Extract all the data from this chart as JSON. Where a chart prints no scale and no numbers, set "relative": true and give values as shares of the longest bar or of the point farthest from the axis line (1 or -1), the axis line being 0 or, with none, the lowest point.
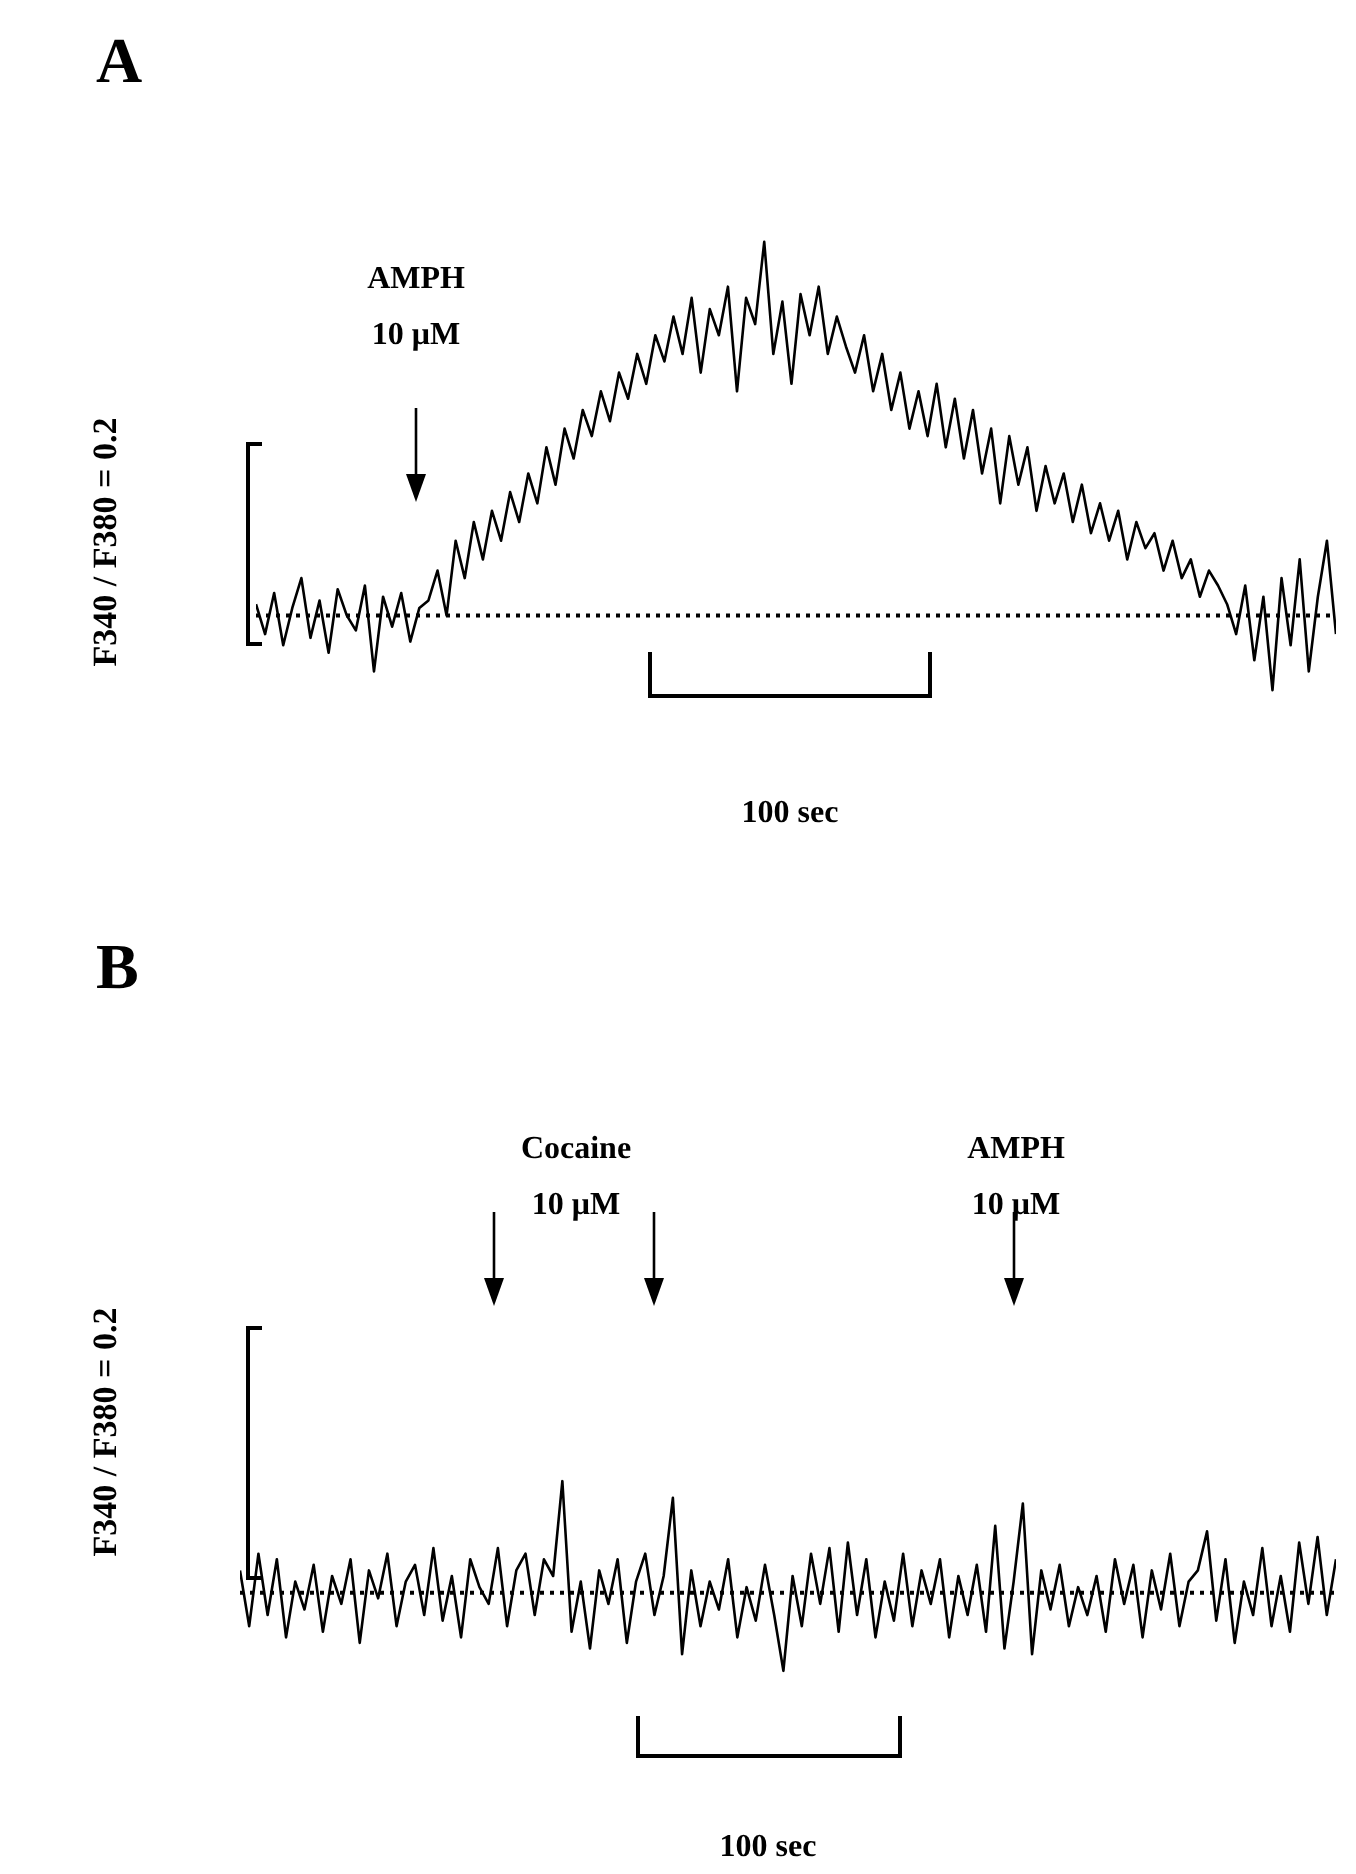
{
  "chart_data": [
    {
      "type": "line",
      "title": "A",
      "ylabel": "F340 / F380 = 0.2",
      "relative": true,
      "categories": [
        null,
        null,
        null,
        null,
        null,
        null,
        null,
        null,
        null,
        null,
        null,
        null,
        null,
        null,
        null,
        null,
        null,
        null,
        null,
        null,
        null,
        null,
        null,
        null,
        null,
        null,
        null,
        null,
        null,
        null,
        null,
        null,
        null,
        null,
        null,
        null,
        null,
        null,
        null,
        null,
        null,
        null,
        null,
        null,
        null,
        null,
        null,
        null,
        null,
        null,
        null,
        null,
        null,
        null,
        null,
        null,
        null,
        null,
        null,
        null,
        null,
        null,
        null,
        null,
        null,
        null,
        null,
        null,
        null,
        null,
        null,
        null,
        null,
        null,
        null,
        null,
        null,
        null,
        null,
        null,
        null,
        null,
        null,
        null,
        null,
        null,
        null,
        null,
        null,
        null,
        null,
        null,
        null,
        null,
        null,
        null,
        null,
        null,
        null,
        null,
        null,
        null,
        null,
        null,
        null,
        null,
        null,
        null,
        null,
        null,
        null,
        null,
        null,
        null,
        null,
        null,
        null,
        null,
        null,
        null
      ],
      "series": [
        {
          "color": "#000000",
          "values": [
            0.03,
            -0.05,
            0.06,
            -0.08,
            0.02,
            0.1,
            -0.06,
            0.04,
            -0.1,
            0.07,
            0.0,
            -0.04,
            0.08,
            -0.15,
            0.05,
            -0.03,
            0.06,
            -0.07,
            0.02,
            0.04,
            0.12,
            0.0,
            0.2,
            0.1,
            0.25,
            0.15,
            0.28,
            0.2,
            0.33,
            0.25,
            0.38,
            0.3,
            0.45,
            0.35,
            0.5,
            0.42,
            0.55,
            0.48,
            0.6,
            0.52,
            0.65,
            0.58,
            0.7,
            0.62,
            0.75,
            0.68,
            0.8,
            0.7,
            0.85,
            0.65,
            0.82,
            0.75,
            0.88,
            0.6,
            0.85,
            0.78,
            1.0,
            0.7,
            0.84,
            0.62,
            0.86,
            0.75,
            0.88,
            0.7,
            0.8,
            0.72,
            0.65,
            0.75,
            0.6,
            0.7,
            0.55,
            0.65,
            0.5,
            0.6,
            0.48,
            0.62,
            0.45,
            0.58,
            0.42,
            0.55,
            0.38,
            0.5,
            0.3,
            0.48,
            0.35,
            0.45,
            0.28,
            0.4,
            0.3,
            0.38,
            0.25,
            0.35,
            0.22,
            0.3,
            0.2,
            0.28,
            0.15,
            0.25,
            0.18,
            0.22,
            0.12,
            0.2,
            0.1,
            0.15,
            0.05,
            0.12,
            0.08,
            0.03,
            -0.05,
            0.08,
            -0.12,
            0.05,
            -0.2,
            0.1,
            -0.08,
            0.15,
            -0.15,
            0.05,
            0.2,
            -0.05
          ]
        }
      ],
      "ref_lines": [
        {
          "axis": "y",
          "value": 0,
          "line_style": "dotted"
        }
      ],
      "annotations": [
        "AMPH 10 μM",
        "100 sec"
      ]
    },
    {
      "type": "line",
      "title": "B",
      "ylabel": "F340 / F380 = 0.2",
      "relative": true,
      "categories": [
        null,
        null,
        null,
        null,
        null,
        null,
        null,
        null,
        null,
        null,
        null,
        null,
        null,
        null,
        null,
        null,
        null,
        null,
        null,
        null,
        null,
        null,
        null,
        null,
        null,
        null,
        null,
        null,
        null,
        null,
        null,
        null,
        null,
        null,
        null,
        null,
        null,
        null,
        null,
        null,
        null,
        null,
        null,
        null,
        null,
        null,
        null,
        null,
        null,
        null,
        null,
        null,
        null,
        null,
        null,
        null,
        null,
        null,
        null,
        null,
        null,
        null,
        null,
        null,
        null,
        null,
        null,
        null,
        null,
        null,
        null,
        null,
        null,
        null,
        null,
        null,
        null,
        null,
        null,
        null,
        null,
        null,
        null,
        null,
        null,
        null,
        null,
        null,
        null,
        null,
        null,
        null,
        null,
        null,
        null,
        null,
        null,
        null,
        null,
        null,
        null,
        null,
        null,
        null,
        null,
        null,
        null,
        null,
        null,
        null,
        null,
        null,
        null,
        null,
        null,
        null,
        null,
        null,
        null,
        null
      ],
      "series": [
        {
          "color": "#000000",
          "values": [
            0.2,
            -0.3,
            0.35,
            -0.2,
            0.3,
            -0.4,
            0.1,
            -0.15,
            0.25,
            -0.35,
            0.15,
            -0.1,
            0.3,
            -0.45,
            0.2,
            -0.05,
            0.35,
            -0.3,
            0.1,
            0.25,
            -0.2,
            0.4,
            -0.25,
            0.15,
            -0.4,
            0.3,
            0.05,
            -0.1,
            0.4,
            -0.3,
            0.2,
            0.35,
            -0.2,
            0.3,
            0.15,
            1.0,
            -0.35,
            0.1,
            -0.5,
            0.2,
            -0.1,
            0.3,
            -0.45,
            0.1,
            0.35,
            -0.2,
            0.15,
            0.85,
            -0.55,
            0.2,
            -0.3,
            0.1,
            -0.15,
            0.3,
            -0.4,
            0.05,
            -0.25,
            0.25,
            -0.2,
            -0.7,
            0.15,
            -0.3,
            0.35,
            -0.1,
            0.4,
            -0.35,
            0.45,
            -0.2,
            0.3,
            -0.4,
            0.1,
            -0.25,
            0.35,
            -0.3,
            0.2,
            -0.1,
            0.3,
            -0.4,
            0.15,
            -0.2,
            0.25,
            -0.35,
            0.6,
            -0.5,
            0.1,
            0.8,
            -0.55,
            0.2,
            -0.15,
            0.25,
            -0.3,
            0.05,
            -0.2,
            0.15,
            -0.35,
            0.3,
            -0.1,
            0.25,
            -0.4,
            0.2,
            -0.15,
            0.35,
            -0.3,
            0.1,
            0.2,
            0.55,
            -0.25,
            0.3,
            -0.45,
            0.1,
            -0.2,
            0.4,
            -0.3,
            0.15,
            -0.35,
            0.45,
            -0.1,
            0.5,
            -0.2,
            0.3
          ]
        }
      ],
      "ref_lines": [
        {
          "axis": "y",
          "value": 0,
          "line_style": "dotted"
        }
      ],
      "annotations": [
        "Cocaine 10 μM",
        "AMPH 10 μM",
        "100 sec"
      ]
    }
  ]
}
